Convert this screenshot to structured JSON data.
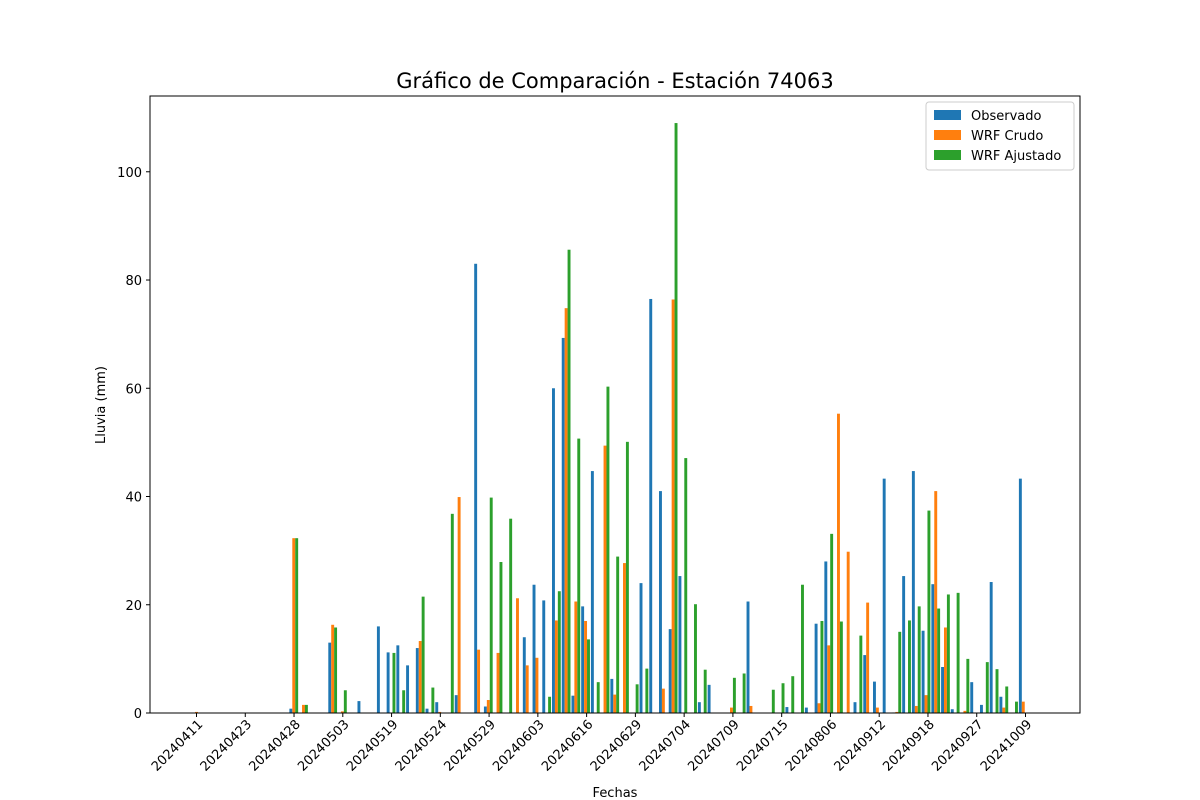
{
  "chart_data": {
    "type": "bar",
    "title": "Gráfico de Comparación - Estación 74063",
    "xlabel": "Fechas",
    "ylabel": "Lluvia (mm)",
    "ylim": [
      0,
      114
    ],
    "yticks": [
      0,
      20,
      40,
      60,
      80,
      100
    ],
    "xtick_labels": [
      "20240411",
      "20240423",
      "20240428",
      "20240503",
      "20240519",
      "20240524",
      "20240529",
      "20240603",
      "20240616",
      "20240629",
      "20240704",
      "20240709",
      "20240715",
      "20240806",
      "20240912",
      "20240918",
      "20240927",
      "20241009"
    ],
    "legend_position": "top-right",
    "grid": false,
    "series": [
      {
        "name": "Observado",
        "color": "#1f77b4",
        "values": [
          0,
          0,
          0,
          0,
          0,
          0,
          0,
          0,
          0,
          0,
          0.8,
          0,
          0,
          0,
          13,
          0,
          0,
          2.2,
          0,
          16,
          11.2,
          12.5,
          8.8,
          12,
          0.8,
          2,
          0,
          3.3,
          0,
          83,
          1.2,
          0,
          0,
          0,
          14,
          23.7,
          20.8,
          60,
          69.3,
          3.2,
          19.7,
          44.7,
          0,
          6.3,
          0,
          0,
          24,
          76.5,
          41,
          15.5,
          25.3,
          0,
          2,
          5.2,
          0,
          0,
          0,
          20.6,
          0,
          0,
          0,
          1.1,
          0,
          1,
          16.5,
          28,
          0,
          0,
          2,
          10.7,
          5.8,
          43.3,
          0.1,
          25.3,
          44.7,
          15.2,
          23.8,
          8.5,
          0.7,
          0,
          5.7,
          1.5,
          24.2,
          3,
          0,
          43.3,
          0
        ]
      },
      {
        "name": "WRF Crudo",
        "color": "#ff7f0e",
        "values": [
          0.2,
          0,
          0,
          0,
          0,
          0,
          0,
          0,
          0,
          0,
          32.3,
          1.5,
          0,
          0,
          16.3,
          0.3,
          0,
          0,
          0,
          0,
          0,
          0,
          0,
          13.3,
          0,
          0.2,
          0,
          39.9,
          0,
          11.7,
          2.4,
          11.1,
          0,
          21.2,
          8.8,
          10.2,
          0,
          17.1,
          74.8,
          20.6,
          17,
          0,
          49.4,
          3.4,
          27.7,
          0,
          0,
          0,
          4.5,
          76.4,
          0,
          0,
          0,
          0,
          0,
          1,
          0,
          1.3,
          0,
          0,
          0,
          0,
          0,
          0,
          1.8,
          12.5,
          55.3,
          29.8,
          0,
          20.4,
          1,
          0,
          0.2,
          0,
          1.3,
          3.3,
          41,
          15.8,
          0,
          0.4,
          0,
          0,
          0,
          1,
          0,
          2.1,
          0
        ]
      },
      {
        "name": "WRF Ajustado",
        "color": "#2ca02c",
        "values": [
          0,
          0,
          0,
          0,
          0,
          0,
          0,
          0,
          0,
          0,
          32.3,
          1.5,
          0,
          0,
          15.8,
          4.2,
          0,
          0,
          0,
          0,
          11.1,
          4.2,
          0,
          21.5,
          4.7,
          0,
          36.8,
          0,
          0,
          0,
          39.8,
          27.9,
          35.9,
          0,
          0,
          0,
          3,
          22.5,
          85.6,
          50.7,
          13.6,
          5.7,
          60.3,
          28.9,
          50.1,
          5.3,
          8.2,
          0,
          0,
          109,
          47.1,
          20.1,
          8,
          0,
          0,
          6.5,
          7.3,
          0,
          0,
          4.3,
          5.5,
          6.8,
          23.7,
          0,
          17,
          33.1,
          16.9,
          0,
          14.3,
          0,
          0,
          0,
          15,
          17.1,
          19.7,
          37.4,
          19.3,
          21.9,
          22.2,
          10,
          0,
          9.4,
          8.1,
          4.9,
          2.1,
          0,
          0
        ]
      }
    ]
  }
}
